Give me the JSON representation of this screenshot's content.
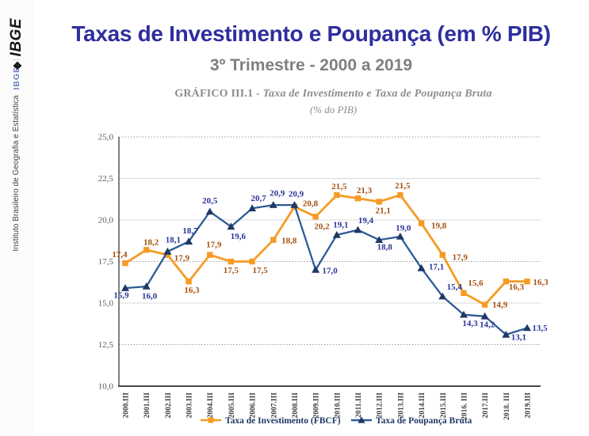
{
  "sidebar": {
    "logo_icon": "❖",
    "logo_text": "IBGE",
    "org_name": "Instituto Brasileiro de Geografia e Estatística",
    "separator": "|",
    "org_abbr": "IBGE"
  },
  "header": {
    "title": "Taxas de Investimento e Poupança  (em % PIB)",
    "subtitle": "3º Trimestre - 2000 a 2019"
  },
  "chart_data": {
    "type": "line",
    "title_prefix": "GRÁFICO III.1 - ",
    "title_main": "Taxa de Investimento e Taxa de Poupança Bruta",
    "subtitle": "(% do PIB)",
    "categories": [
      "2000.III",
      "2001.III",
      "2002.III",
      "2003.III",
      "2004.III",
      "2005.III",
      "2006.III",
      "2007.III",
      "2008.III",
      "2009.III",
      "2010.III",
      "2011.III",
      "2012.III",
      "2013.III",
      "2014.III",
      "2015.III",
      "2016. III",
      "2017.III",
      "2018. III",
      "2019.III"
    ],
    "ylim": [
      10,
      25
    ],
    "ytick_step": 2.5,
    "grid": "horizontal",
    "legend_position": "bottom",
    "yticks": [
      {
        "v": 25.0,
        "label": "25,0",
        "style": "dotted"
      },
      {
        "v": 22.5,
        "label": "22,5",
        "style": "solid"
      },
      {
        "v": 20.0,
        "label": "20,0",
        "style": "solid"
      },
      {
        "v": 17.5,
        "label": "17,5",
        "style": "dotted"
      },
      {
        "v": 15.0,
        "label": "15,0",
        "style": "solid"
      },
      {
        "v": 12.5,
        "label": "12,5",
        "style": "dotted"
      },
      {
        "v": 10.0,
        "label": "10,0",
        "style": "axis"
      }
    ],
    "colors": {
      "grid_solid": "#d9d9d9",
      "grid_dotted": "#9a9a9a",
      "axis": "#4a4a4a"
    },
    "series": [
      {
        "id": "investimento",
        "name": "Taxa de Investimento (FBCF)",
        "marker": "square",
        "color": "#F59B25",
        "marker_color": "#F59B25",
        "label_color": "#A5500F",
        "values": [
          17.4,
          18.2,
          17.9,
          16.3,
          17.9,
          17.5,
          17.5,
          18.8,
          20.8,
          20.2,
          21.5,
          21.3,
          21.1,
          21.5,
          19.8,
          17.9,
          15.6,
          14.9,
          16.3,
          16.3
        ],
        "label_offsets": [
          [
            -7,
            -11
          ],
          [
            6,
            -10
          ],
          [
            18,
            4
          ],
          [
            4,
            11
          ],
          [
            5,
            -13
          ],
          [
            0,
            11
          ],
          [
            10,
            11
          ],
          [
            20,
            1
          ],
          [
            20,
            -4
          ],
          [
            8,
            12
          ],
          [
            3,
            -11
          ],
          [
            8,
            -10
          ],
          [
            5,
            11
          ],
          [
            3,
            -12
          ],
          [
            22,
            3
          ],
          [
            22,
            3
          ],
          [
            15,
            -13
          ],
          [
            19,
            0
          ],
          [
            13,
            7
          ],
          [
            17,
            1
          ]
        ]
      },
      {
        "id": "poupanca",
        "name": "Taxa de Poupança Bruta",
        "marker": "triangle",
        "color": "#2E5B97",
        "marker_color": "#1F3864",
        "label_color": "#2B3598",
        "values": [
          15.9,
          16.0,
          18.1,
          18.7,
          20.5,
          19.6,
          20.7,
          20.9,
          20.9,
          17.0,
          19.1,
          19.4,
          18.8,
          19.0,
          17.1,
          15.4,
          14.3,
          14.2,
          13.1,
          13.5
        ],
        "label_offsets": [
          [
            -5,
            9
          ],
          [
            4,
            12
          ],
          [
            7,
            -15
          ],
          [
            2,
            -14
          ],
          [
            0,
            -14
          ],
          [
            9,
            12
          ],
          [
            8,
            -13
          ],
          [
            5,
            -15
          ],
          [
            2,
            -14
          ],
          [
            18,
            1
          ],
          [
            5,
            -13
          ],
          [
            10,
            -12
          ],
          [
            7,
            9
          ],
          [
            4,
            -11
          ],
          [
            19,
            -2
          ],
          [
            15,
            -12
          ],
          [
            8,
            11
          ],
          [
            3,
            10
          ],
          [
            16,
            3
          ],
          [
            16,
            0
          ]
        ]
      }
    ]
  }
}
